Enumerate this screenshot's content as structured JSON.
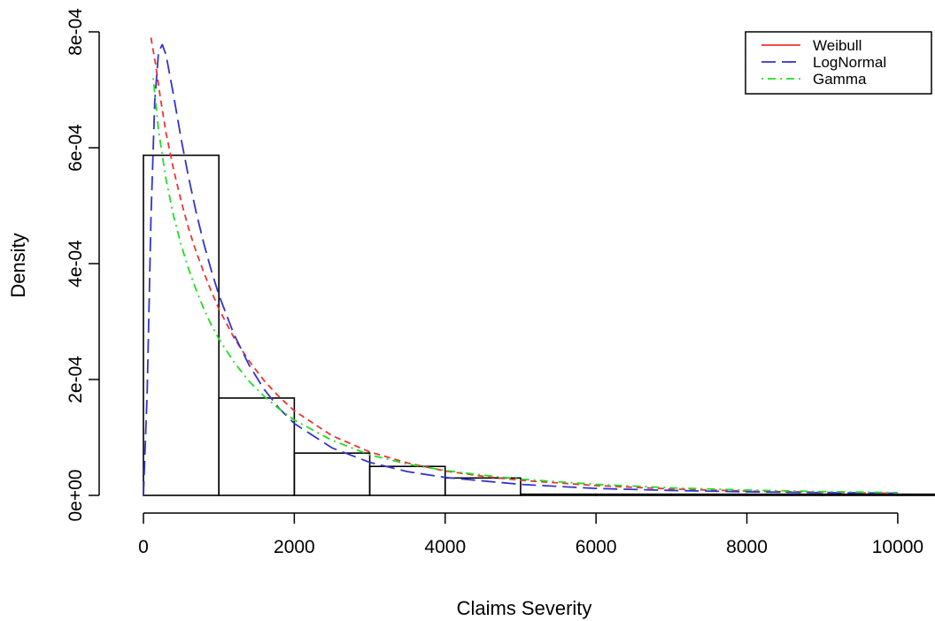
{
  "chart_data": {
    "type": "histogram",
    "title": "",
    "xlabel": "Claims Severity",
    "ylabel": "Density",
    "xlim": [
      0,
      10400
    ],
    "ylim": [
      0,
      0.0008
    ],
    "x_ticks": [
      0,
      2000,
      4000,
      6000,
      8000,
      10000
    ],
    "x_tick_labels": [
      "0",
      "2000",
      "4000",
      "6000",
      "8000",
      "10000"
    ],
    "y_ticks": [
      0,
      0.0002,
      0.0004,
      0.0006,
      0.0008
    ],
    "y_tick_labels": [
      "0e+00",
      "2e-04",
      "4e-04",
      "6e-04",
      "8e-04"
    ],
    "grid": false,
    "legend_position": "top-right",
    "bins": [
      {
        "start": 0,
        "end": 1000,
        "density": 0.000587
      },
      {
        "start": 1000,
        "end": 2000,
        "density": 0.000168
      },
      {
        "start": 2000,
        "end": 3000,
        "density": 7.3e-05
      },
      {
        "start": 3000,
        "end": 4000,
        "density": 5e-05
      },
      {
        "start": 4000,
        "end": 5000,
        "density": 3e-05
      },
      {
        "start": 5000,
        "end": 6000,
        "density": 2e-06
      },
      {
        "start": 6000,
        "end": 7000,
        "density": 2e-06
      },
      {
        "start": 7000,
        "end": 8000,
        "density": 2e-06
      },
      {
        "start": 8000,
        "end": 9000,
        "density": 2e-06
      },
      {
        "start": 9000,
        "end": 10000,
        "density": 2e-06
      },
      {
        "start": 10000,
        "end": 11000,
        "density": 2e-06
      }
    ],
    "series": [
      {
        "name": "Weibull",
        "color": "#ee3333",
        "line_style": "dashed",
        "points": [
          [
            100,
            0.00079
          ],
          [
            160,
            0.000745
          ],
          [
            220,
            0.00069
          ],
          [
            300,
            0.000625
          ],
          [
            400,
            0.000562
          ],
          [
            500,
            0.000508
          ],
          [
            600,
            0.00046
          ],
          [
            700,
            0.00042
          ],
          [
            800,
            0.000385
          ],
          [
            900,
            0.000352
          ],
          [
            1000,
            0.000322
          ],
          [
            1200,
            0.000272
          ],
          [
            1400,
            0.000232
          ],
          [
            1600,
            0.000198
          ],
          [
            1800,
            0.00017
          ],
          [
            2000,
            0.000146
          ],
          [
            2500,
            0.000103
          ],
          [
            3000,
            7.5e-05
          ],
          [
            3500,
            5.6e-05
          ],
          [
            4000,
            4.2e-05
          ],
          [
            4500,
            3.3e-05
          ],
          [
            5000,
            2.6e-05
          ],
          [
            6000,
            1.7e-05
          ],
          [
            7000,
            1.1e-05
          ],
          [
            8000,
            7.5e-06
          ],
          [
            9000,
            5.2e-06
          ],
          [
            10000,
            3.6e-06
          ]
        ]
      },
      {
        "name": "LogNormal",
        "color": "#3333cc",
        "line_style": "longdash",
        "points": [
          [
            0,
            0
          ],
          [
            50,
            0.00018
          ],
          [
            100,
            0.00048
          ],
          [
            150,
            0.00068
          ],
          [
            200,
            0.000765
          ],
          [
            250,
            0.000778
          ],
          [
            300,
            0.00076
          ],
          [
            400,
            0.00069
          ],
          [
            500,
            0.000615
          ],
          [
            600,
            0.000548
          ],
          [
            700,
            0.000488
          ],
          [
            800,
            0.000435
          ],
          [
            900,
            0.000388
          ],
          [
            1000,
            0.000346
          ],
          [
            1200,
            0.000278
          ],
          [
            1400,
            0.000225
          ],
          [
            1600,
            0.000183
          ],
          [
            1800,
            0.00015
          ],
          [
            2000,
            0.000124
          ],
          [
            2500,
            8.2e-05
          ],
          [
            3000,
            5.7e-05
          ],
          [
            3500,
            4.1e-05
          ],
          [
            4000,
            3.1e-05
          ],
          [
            5000,
            1.9e-05
          ],
          [
            6000,
            1.2e-05
          ],
          [
            7000,
            8.5e-06
          ],
          [
            8000,
            6.2e-06
          ],
          [
            9000,
            4.7e-06
          ],
          [
            10000,
            3.7e-06
          ]
        ]
      },
      {
        "name": "Gamma",
        "color": "#22dd22",
        "line_style": "dotdash",
        "points": [
          [
            130,
            0.00072
          ],
          [
            200,
            0.00063
          ],
          [
            300,
            0.000545
          ],
          [
            400,
            0.000482
          ],
          [
            500,
            0.000432
          ],
          [
            600,
            0.00039
          ],
          [
            700,
            0.000354
          ],
          [
            800,
            0.000322
          ],
          [
            900,
            0.000294
          ],
          [
            1000,
            0.00027
          ],
          [
            1200,
            0.00023
          ],
          [
            1400,
            0.000197
          ],
          [
            1600,
            0.000171
          ],
          [
            1800,
            0.000149
          ],
          [
            2000,
            0.00013
          ],
          [
            2500,
            9.5e-05
          ],
          [
            3000,
            7e-05
          ],
          [
            3500,
            5.4e-05
          ],
          [
            4000,
            4.3e-05
          ],
          [
            4500,
            3.5e-05
          ],
          [
            5000,
            2.8e-05
          ],
          [
            6000,
            1.9e-05
          ],
          [
            7000,
            1.3e-05
          ],
          [
            8000,
            9.2e-06
          ],
          [
            9000,
            6.6e-06
          ],
          [
            10000,
            4.8e-06
          ]
        ]
      }
    ]
  }
}
